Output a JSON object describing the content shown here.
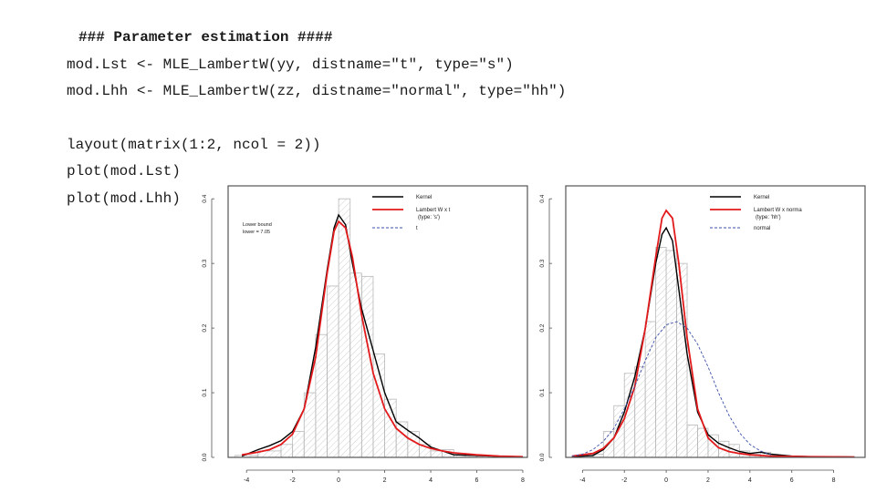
{
  "code": {
    "lines": [
      "### Parameter estimation ####",
      "mod.Lst <- MLE_LambertW(yy, distname=\"t\", type=\"s\")",
      "mod.Lhh <- MLE_LambertW(zz, distname=\"normal\", type=\"hh\")",
      "layout(matrix(1:2, ncol = 2))",
      "plot(mod.Lst)",
      "plot(mod.Lhh)"
    ]
  },
  "colors": {
    "kernel": "#000000",
    "lambert": "#e31a1c",
    "base": "#3b4fa8",
    "hist_border": "#b8b8b8",
    "hatch": "#cfcfcf",
    "axis": "#555555",
    "text": "#1a1a1a"
  },
  "chart_data": [
    {
      "type": "bar",
      "subtype": "histogram_with_density",
      "x_ticks": [
        "-4",
        "-2",
        "0",
        "2",
        "4",
        "6",
        "8"
      ],
      "y_ticks": [
        "0.0",
        "0.1",
        "0.2",
        "0.3",
        "0.4"
      ],
      "xlim": [
        -4.8,
        8.2
      ],
      "ylim": [
        0,
        0.42
      ],
      "grid": false,
      "legend_position": "top-right",
      "legend": [
        {
          "label": "Kernel",
          "style": "kernel"
        },
        {
          "label": "Lambert W x t",
          "sublabel": "(type: 's')",
          "style": "lambert"
        },
        {
          "label": "t",
          "style": "base"
        }
      ],
      "annotation": [
        "Lower bound",
        "lower = 7.05"
      ],
      "histogram": {
        "bin_edges": [
          -4.5,
          -3.5,
          -2.5,
          -2.0,
          -1.5,
          -1.0,
          -0.5,
          0.0,
          0.5,
          1.0,
          1.5,
          2.0,
          2.5,
          3.0,
          3.5,
          4.0,
          4.5,
          5.0,
          5.5,
          6.0,
          7.0,
          8.0
        ],
        "densities": [
          0.003,
          0.01,
          0.02,
          0.04,
          0.1,
          0.19,
          0.265,
          0.4,
          0.285,
          0.28,
          0.16,
          0.09,
          0.055,
          0.04,
          0.02,
          0.01,
          0.012,
          0.005,
          0.004,
          0.002,
          0.001
        ]
      },
      "series": [
        {
          "name": "Kernel",
          "style": "kernel",
          "x": [
            -4.2,
            -3.5,
            -3.0,
            -2.5,
            -2.0,
            -1.5,
            -1.0,
            -0.5,
            -0.2,
            0.0,
            0.3,
            0.6,
            1.0,
            1.5,
            2.0,
            2.5,
            3.0,
            3.5,
            4.0,
            4.5,
            5.0,
            6.0,
            7.0,
            8.0
          ],
          "y": [
            0.002,
            0.012,
            0.018,
            0.026,
            0.04,
            0.075,
            0.17,
            0.29,
            0.355,
            0.375,
            0.36,
            0.3,
            0.23,
            0.165,
            0.1,
            0.055,
            0.042,
            0.03,
            0.016,
            0.01,
            0.004,
            0.003,
            0.0015,
            0.001
          ]
        },
        {
          "name": "Lambert W x t",
          "style": "lambert",
          "x": [
            -4.2,
            -3.5,
            -3.0,
            -2.5,
            -2.0,
            -1.5,
            -1.0,
            -0.5,
            -0.2,
            0.0,
            0.3,
            0.6,
            1.0,
            1.5,
            2.0,
            2.5,
            3.0,
            3.5,
            4.0,
            4.5,
            5.0,
            6.0,
            7.0,
            8.0
          ],
          "y": [
            0.004,
            0.008,
            0.012,
            0.02,
            0.036,
            0.075,
            0.155,
            0.285,
            0.35,
            0.365,
            0.355,
            0.31,
            0.22,
            0.13,
            0.075,
            0.045,
            0.03,
            0.02,
            0.014,
            0.01,
            0.007,
            0.004,
            0.002,
            0.001
          ]
        }
      ]
    },
    {
      "type": "bar",
      "subtype": "histogram_with_density",
      "x_ticks": [
        "-4",
        "-2",
        "0",
        "2",
        "4",
        "6",
        "8"
      ],
      "y_ticks": [
        "0.0",
        "0.1",
        "0.2",
        "0.3",
        "0.4"
      ],
      "xlim": [
        -4.8,
        9.5
      ],
      "ylim": [
        0,
        0.42
      ],
      "grid": false,
      "legend_position": "top-right",
      "legend": [
        {
          "label": "Kernel",
          "style": "kernel"
        },
        {
          "label": "Lambert W x norma",
          "sublabel": "(type: 'hh')",
          "style": "lambert"
        },
        {
          "label": "normal",
          "style": "base"
        }
      ],
      "histogram": {
        "bin_edges": [
          -4.5,
          -3.5,
          -3.0,
          -2.5,
          -2.0,
          -1.5,
          -1.0,
          -0.5,
          0.0,
          0.5,
          1.0,
          1.5,
          2.0,
          2.5,
          3.0,
          3.5,
          4.0,
          4.5,
          5.0,
          5.5,
          6.0,
          7.0,
          8.0,
          9.0
        ],
        "densities": [
          0.002,
          0.005,
          0.04,
          0.08,
          0.13,
          0.14,
          0.21,
          0.325,
          0.32,
          0.3,
          0.05,
          0.045,
          0.035,
          0.025,
          0.02,
          0.01,
          0.005,
          0.008,
          0.003,
          0.002,
          0.001,
          0.001,
          0.0005
        ]
      },
      "series": [
        {
          "name": "Kernel",
          "style": "kernel",
          "x": [
            -4.5,
            -3.5,
            -3.0,
            -2.5,
            -2.0,
            -1.5,
            -1.0,
            -0.5,
            -0.2,
            0.0,
            0.3,
            0.6,
            1.0,
            1.5,
            2.0,
            2.5,
            3.0,
            3.5,
            4.0,
            4.5,
            5.0,
            6.0,
            7.0,
            8.0,
            9.0
          ],
          "y": [
            0.001,
            0.003,
            0.012,
            0.03,
            0.07,
            0.125,
            0.2,
            0.3,
            0.345,
            0.355,
            0.335,
            0.26,
            0.16,
            0.07,
            0.035,
            0.022,
            0.015,
            0.009,
            0.006,
            0.008,
            0.005,
            0.002,
            0.001,
            0.001,
            0.0005
          ]
        },
        {
          "name": "Lambert W x norma",
          "style": "lambert",
          "x": [
            -4.5,
            -3.5,
            -3.0,
            -2.5,
            -2.0,
            -1.5,
            -1.0,
            -0.5,
            -0.2,
            0.0,
            0.3,
            0.6,
            1.0,
            1.5,
            2.0,
            2.5,
            3.0,
            3.5,
            4.0,
            4.5,
            5.0,
            6.0,
            7.0,
            8.0,
            9.0
          ],
          "y": [
            0.002,
            0.006,
            0.014,
            0.03,
            0.06,
            0.11,
            0.2,
            0.31,
            0.37,
            0.382,
            0.37,
            0.3,
            0.185,
            0.075,
            0.03,
            0.015,
            0.009,
            0.006,
            0.004,
            0.003,
            0.002,
            0.0015,
            0.001,
            0.0008,
            0.0005
          ]
        },
        {
          "name": "normal",
          "style": "base",
          "x": [
            -4.5,
            -4.0,
            -3.5,
            -3.0,
            -2.5,
            -2.0,
            -1.5,
            -1.0,
            -0.5,
            0.0,
            0.5,
            1.0,
            1.5,
            2.0,
            2.5,
            3.0,
            3.5,
            4.0,
            4.5,
            5.0
          ],
          "y": [
            0.002,
            0.005,
            0.012,
            0.025,
            0.045,
            0.075,
            0.11,
            0.15,
            0.185,
            0.205,
            0.21,
            0.2,
            0.175,
            0.14,
            0.1,
            0.065,
            0.038,
            0.02,
            0.01,
            0.004
          ]
        }
      ]
    }
  ]
}
